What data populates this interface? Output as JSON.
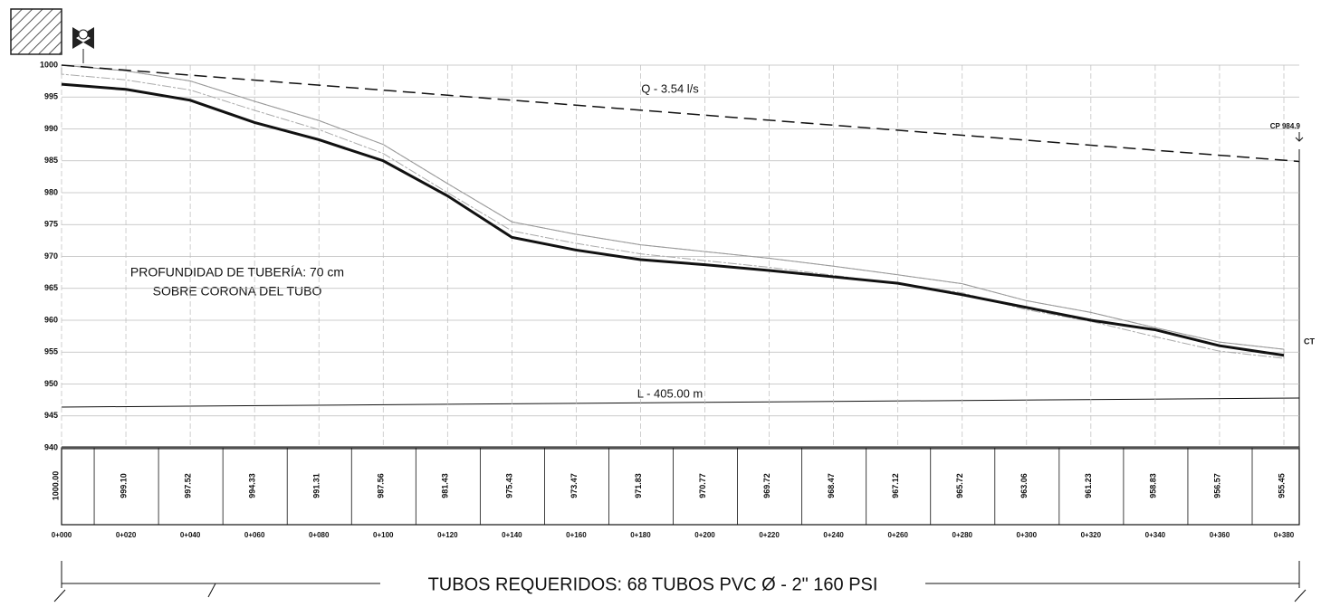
{
  "chart_data": {
    "type": "line",
    "categories": [
      "0+000",
      "0+020",
      "0+040",
      "0+060",
      "0+080",
      "0+100",
      "0+120",
      "0+140",
      "0+160",
      "0+180",
      "0+200",
      "0+220",
      "0+240",
      "0+260",
      "0+280",
      "0+300",
      "0+320",
      "0+340",
      "0+360",
      "0+380"
    ],
    "series": [
      {
        "color": "#999999",
        "values": [
          1000.0,
          999.1,
          997.52,
          994.33,
          991.31,
          987.56,
          981.43,
          975.43,
          973.47,
          971.83,
          970.77,
          969.72,
          968.47,
          967.12,
          965.72,
          963.06,
          961.23,
          958.83,
          956.57,
          955.45
        ]
      },
      {
        "color": "#111111",
        "values": [
          997,
          996.2,
          994.5,
          991,
          988.3,
          985,
          979.5,
          973,
          971,
          969.5,
          968.7,
          967.8,
          966.8,
          965.8,
          964,
          962,
          960,
          958.5,
          956,
          954.5
        ]
      }
    ],
    "value_labels": [
      "1000.00",
      "999.10",
      "997.52",
      "994.33",
      "991.31",
      "987.56",
      "981.43",
      "975.43",
      "973.47",
      "971.83",
      "970.77",
      "969.72",
      "968.47",
      "967.12",
      "965.72",
      "963.06",
      "961.23",
      "958.83",
      "956.57",
      "955.45"
    ],
    "hydraulic_line": [
      1000,
      984.9
    ],
    "ylim": [
      940,
      1000
    ],
    "yticks": [
      940,
      945,
      950,
      955,
      960,
      965,
      970,
      975,
      980,
      985,
      990,
      995,
      1000
    ],
    "grid": true,
    "annotations": {
      "flow": "Q - 3.54 l/s",
      "end_point": "CP 984.9",
      "terrain": "CT",
      "depth_1": "PROFUNDIDAD DE TUBERÍA: 70 cm",
      "depth_2": "SOBRE CORONA DEL TUBO",
      "length": "L - 405.00 m",
      "pipes": "TUBOS REQUERIDOS: 68 TUBOS PVC Ø - 2\" 160 PSI"
    }
  }
}
